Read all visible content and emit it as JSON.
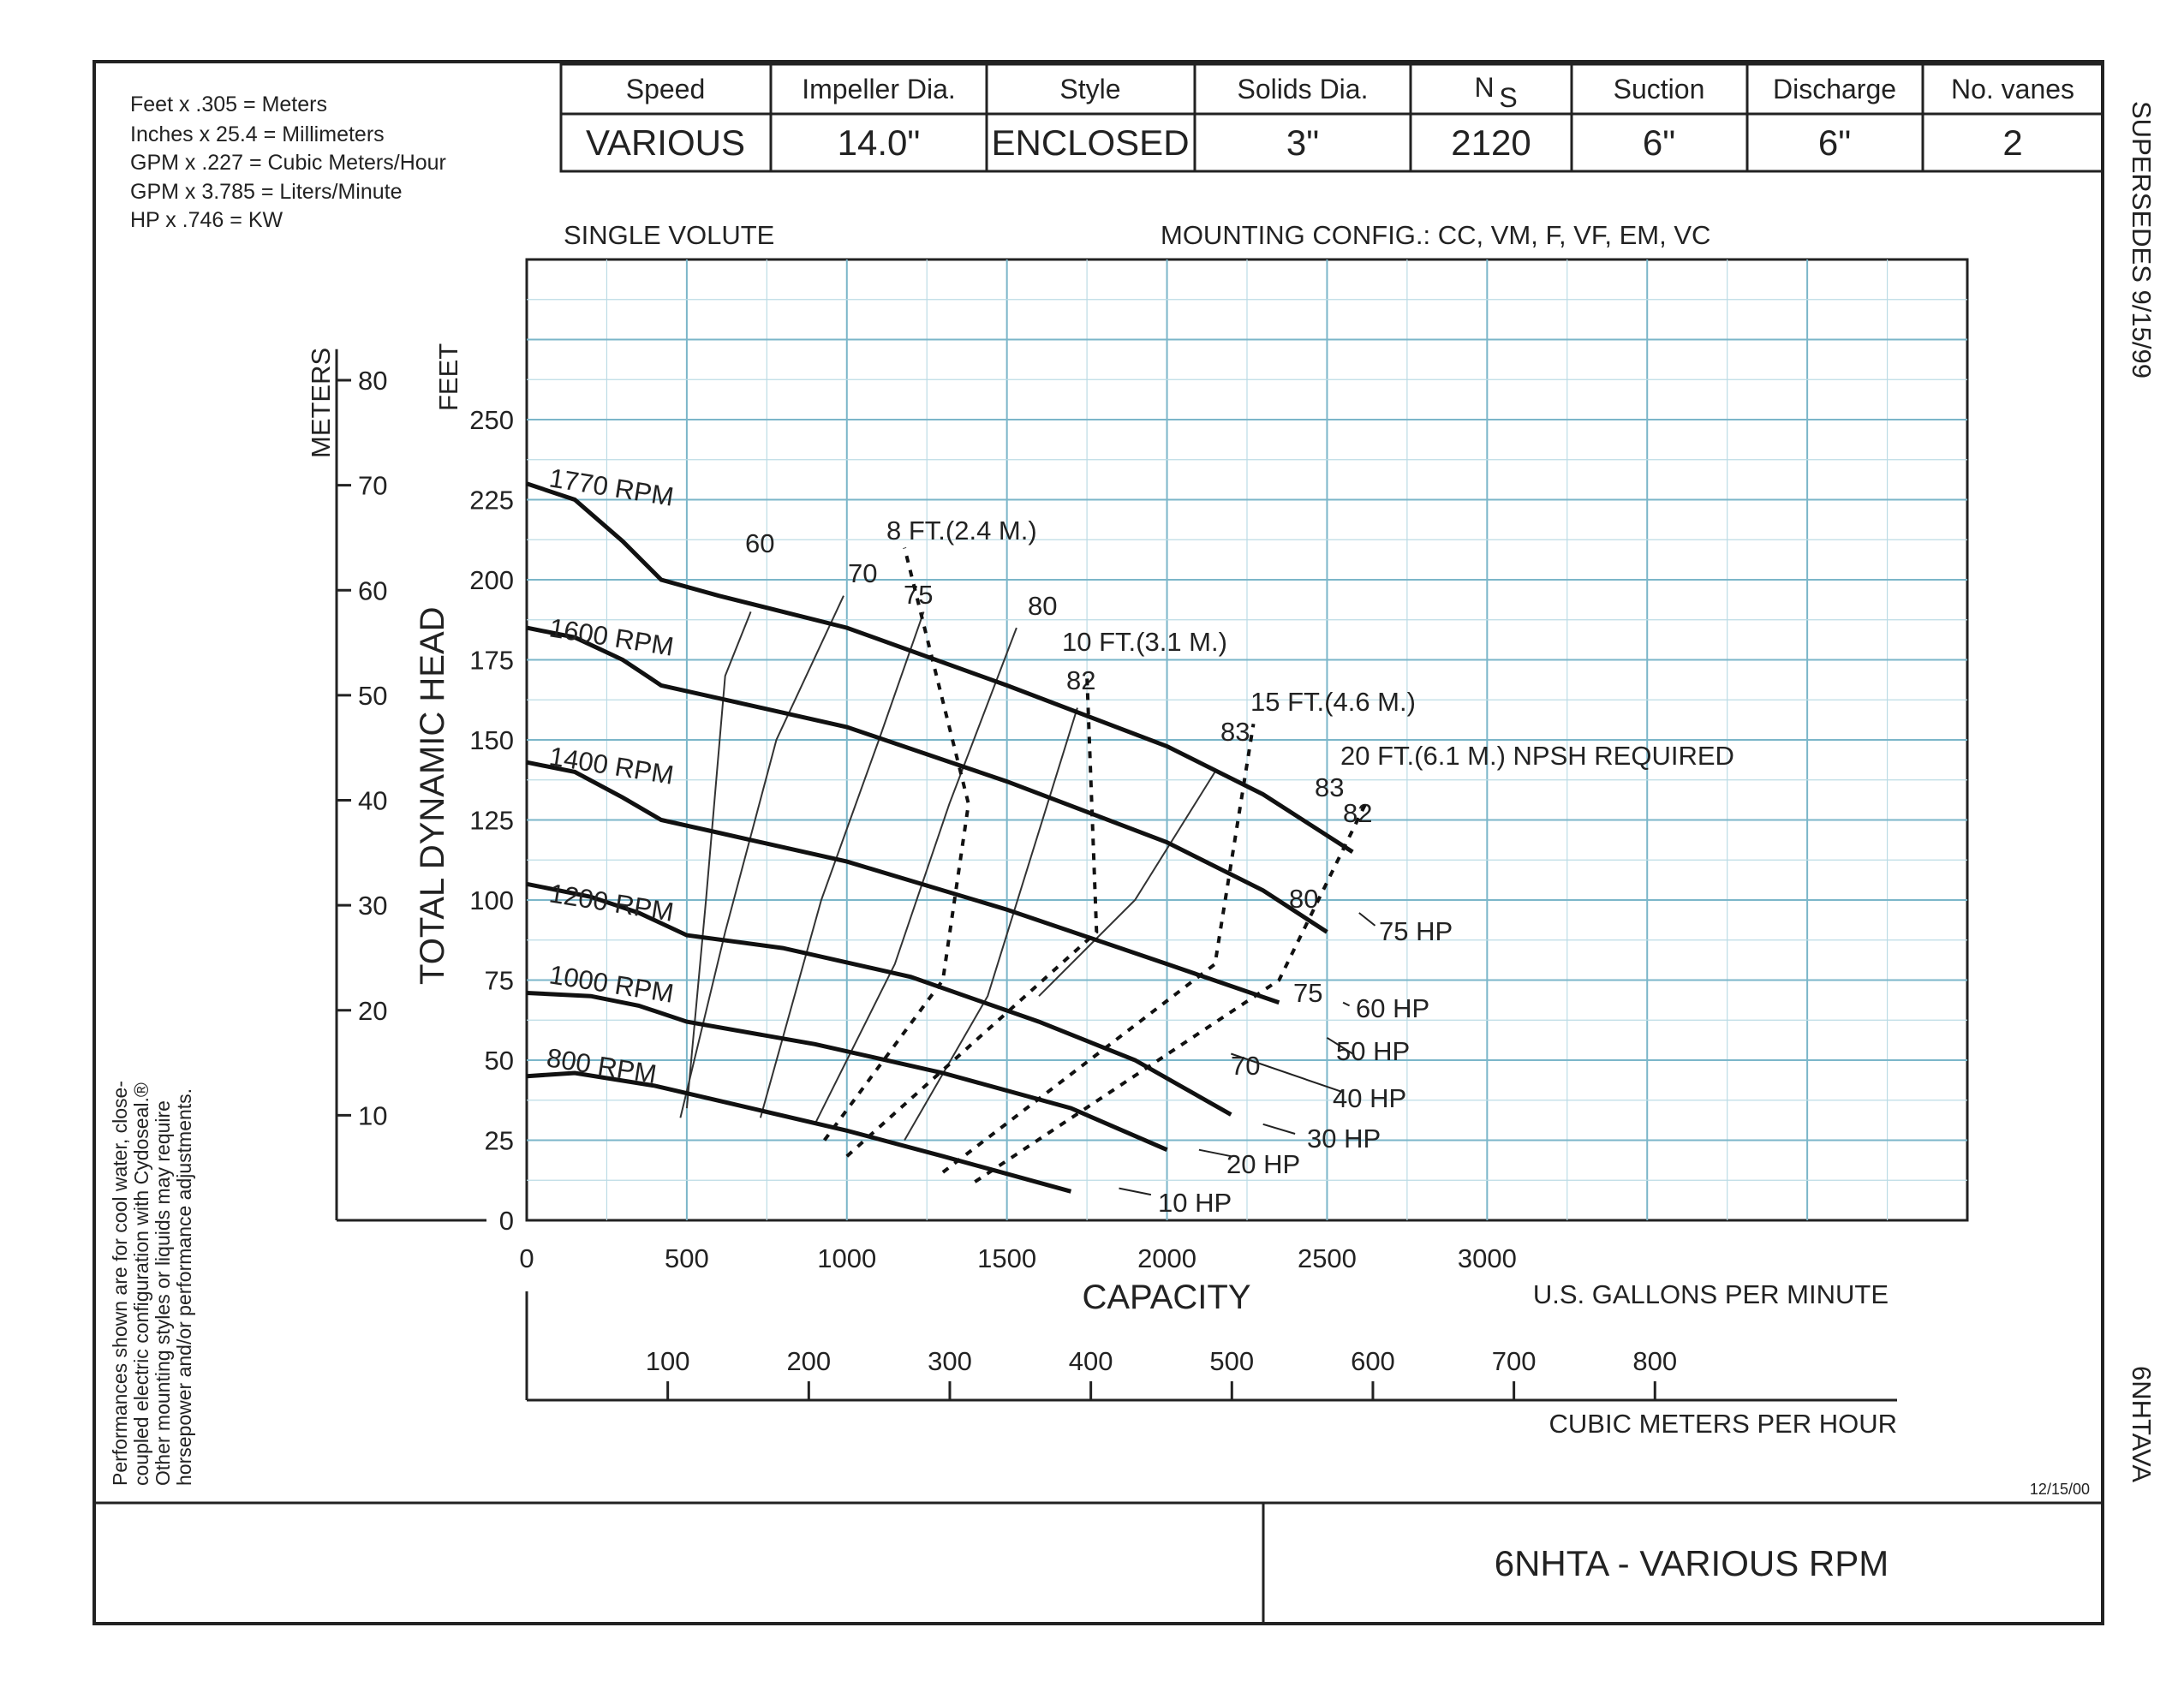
{
  "conversions": [
    "Feet x .305 = Meters",
    "Inches x 25.4 = Millimeters",
    "GPM x .227 = Cubic Meters/Hour",
    "GPM x 3.785 = Liters/Minute",
    "HP x .746 = KW"
  ],
  "spec_table": {
    "headers": [
      "Speed",
      "Impeller Dia.",
      "Style",
      "Solids Dia.",
      "N",
      "Suction",
      "Discharge",
      "No. vanes"
    ],
    "ns_subscript": "S",
    "values": [
      "VARIOUS",
      "14.0\"",
      "ENCLOSED",
      "3\"",
      "2120",
      "6\"",
      "6\"",
      "2"
    ]
  },
  "volute_label": "SINGLE VOLUTE",
  "mounting_label": "MOUNTING CONFIG.:  CC,  VM,  F,  VF,  EM,  VC",
  "supersedes": "SUPERSEDES  9/15/99",
  "model_code": "6NHTAVA",
  "date_code": "12/15/00",
  "title_block": "6NHTA - VARIOUS RPM",
  "note_lines": [
    "Performances shown are for cool water, close-",
    "coupled electric configuration with Cydoseal.®",
    "Other mounting styles or liquids may require",
    "horsepower and/or performance adjustments."
  ],
  "chart_data": {
    "type": "line",
    "xlabel": "CAPACITY",
    "x_unit_label": "U.S. GALLONS PER MINUTE",
    "x_ticks": [
      "0",
      "500",
      "1000",
      "1500",
      "2000",
      "2500",
      "3000"
    ],
    "xlim": [
      0,
      4500
    ],
    "ylabel": "TOTAL DYNAMIC HEAD",
    "y_unit_label": "FEET",
    "y_ticks": [
      "0",
      "25",
      "50",
      "75",
      "100",
      "125",
      "150",
      "175",
      "200",
      "225",
      "250"
    ],
    "ylim": [
      0,
      300
    ],
    "meters_label": "METERS",
    "meters_ticks": [
      "10",
      "20",
      "30",
      "40",
      "50",
      "60",
      "70",
      "80"
    ],
    "cmh_label": "CUBIC METERS PER HOUR",
    "cmh_ticks": [
      "100",
      "200",
      "300",
      "400",
      "500",
      "600",
      "700",
      "800"
    ],
    "grid": true,
    "series": [
      {
        "name": "1770 RPM",
        "points": [
          [
            0,
            230
          ],
          [
            150,
            225
          ],
          [
            300,
            212
          ],
          [
            420,
            200
          ],
          [
            600,
            195
          ],
          [
            1000,
            185
          ],
          [
            1500,
            167
          ],
          [
            2000,
            148
          ],
          [
            2300,
            133
          ],
          [
            2580,
            115
          ]
        ]
      },
      {
        "name": "1600 RPM",
        "points": [
          [
            0,
            185
          ],
          [
            150,
            182
          ],
          [
            300,
            175
          ],
          [
            420,
            167
          ],
          [
            600,
            163
          ],
          [
            1000,
            154
          ],
          [
            1500,
            137
          ],
          [
            2000,
            118
          ],
          [
            2300,
            103
          ],
          [
            2500,
            90
          ]
        ]
      },
      {
        "name": "1400 RPM",
        "points": [
          [
            0,
            143
          ],
          [
            150,
            140
          ],
          [
            300,
            132
          ],
          [
            420,
            125
          ],
          [
            600,
            121
          ],
          [
            1000,
            112
          ],
          [
            1500,
            97
          ],
          [
            2000,
            80
          ],
          [
            2350,
            68
          ]
        ]
      },
      {
        "name": "1200 RPM",
        "points": [
          [
            0,
            105
          ],
          [
            200,
            101
          ],
          [
            350,
            96
          ],
          [
            500,
            89
          ],
          [
            800,
            85
          ],
          [
            1200,
            76
          ],
          [
            1600,
            62
          ],
          [
            1900,
            50
          ],
          [
            2200,
            33
          ]
        ]
      },
      {
        "name": "1000 RPM",
        "points": [
          [
            0,
            71
          ],
          [
            200,
            70
          ],
          [
            350,
            67
          ],
          [
            500,
            62
          ],
          [
            900,
            55
          ],
          [
            1300,
            46
          ],
          [
            1700,
            35
          ],
          [
            2000,
            22
          ]
        ]
      },
      {
        "name": "800 RPM",
        "points": [
          [
            0,
            45
          ],
          [
            150,
            46
          ],
          [
            400,
            42
          ],
          [
            700,
            35
          ],
          [
            1000,
            28
          ],
          [
            1300,
            20
          ],
          [
            1700,
            9
          ]
        ]
      }
    ],
    "efficiency_labels": [
      "60",
      "70",
      "75",
      "80",
      "82",
      "83",
      "83",
      "82",
      "80",
      "75",
      "70"
    ],
    "efficiency_lines": [
      {
        "label": "60",
        "points": [
          [
            500,
            35
          ],
          [
            560,
            100
          ],
          [
            620,
            170
          ],
          [
            700,
            190
          ]
        ]
      },
      {
        "label": "70",
        "points": [
          [
            480,
            32
          ],
          [
            620,
            90
          ],
          [
            780,
            150
          ],
          [
            990,
            195
          ]
        ]
      },
      {
        "label": "75",
        "points": [
          [
            730,
            32
          ],
          [
            920,
            100
          ],
          [
            1100,
            150
          ],
          [
            1240,
            190
          ]
        ]
      },
      {
        "label": "80",
        "points": [
          [
            900,
            30
          ],
          [
            1150,
            80
          ],
          [
            1320,
            130
          ],
          [
            1530,
            185
          ]
        ]
      },
      {
        "label": "82",
        "points": [
          [
            1180,
            25
          ],
          [
            1440,
            70
          ],
          [
            1720,
            160
          ]
        ]
      },
      {
        "label": "83",
        "points": [
          [
            1600,
            70
          ],
          [
            1900,
            100
          ],
          [
            2150,
            140
          ]
        ]
      }
    ],
    "npsh_labels": [
      "8 FT.(2.4 M.)",
      "10 FT.(3.1 M.)",
      "15 FT.(4.6 M.)",
      "20 FT.(6.1 M.) NPSH REQUIRED"
    ],
    "npsh_lines": [
      {
        "label": "8 FT.(2.4 M.)",
        "points": [
          [
            930,
            25
          ],
          [
            1300,
            75
          ],
          [
            1380,
            130
          ],
          [
            1180,
            210
          ]
        ]
      },
      {
        "label": "10 FT.(3.1 M.)",
        "points": [
          [
            1000,
            20
          ],
          [
            1780,
            90
          ],
          [
            1750,
            170
          ]
        ]
      },
      {
        "label": "15 FT.(4.6 M.)",
        "points": [
          [
            1300,
            15
          ],
          [
            2150,
            80
          ],
          [
            2270,
            155
          ]
        ]
      },
      {
        "label": "20 FT.(6.1 M.) NPSH REQUIRED",
        "points": [
          [
            1400,
            12
          ],
          [
            2350,
            75
          ],
          [
            2620,
            130
          ]
        ]
      }
    ],
    "hp_labels": [
      "75 HP",
      "60 HP",
      "50 HP",
      "40 HP",
      "30 HP",
      "20 HP",
      "10 HP"
    ],
    "hp_lines": [
      {
        "label": "75 HP",
        "points": [
          [
            2600,
            96
          ],
          [
            2650,
            92
          ]
        ]
      },
      {
        "label": "60 HP",
        "points": [
          [
            2550,
            68
          ],
          [
            2570,
            67
          ]
        ]
      },
      {
        "label": "50 HP",
        "points": [
          [
            2500,
            57
          ],
          [
            2580,
            52
          ]
        ]
      },
      {
        "label": "40 HP",
        "points": [
          [
            2200,
            52
          ],
          [
            2550,
            40
          ]
        ]
      },
      {
        "label": "30 HP",
        "points": [
          [
            2300,
            30
          ],
          [
            2400,
            27
          ]
        ]
      },
      {
        "label": "20 HP",
        "points": [
          [
            2100,
            22
          ],
          [
            2200,
            20
          ]
        ]
      },
      {
        "label": "10 HP",
        "points": [
          [
            1850,
            10
          ],
          [
            1950,
            8
          ]
        ]
      }
    ]
  }
}
